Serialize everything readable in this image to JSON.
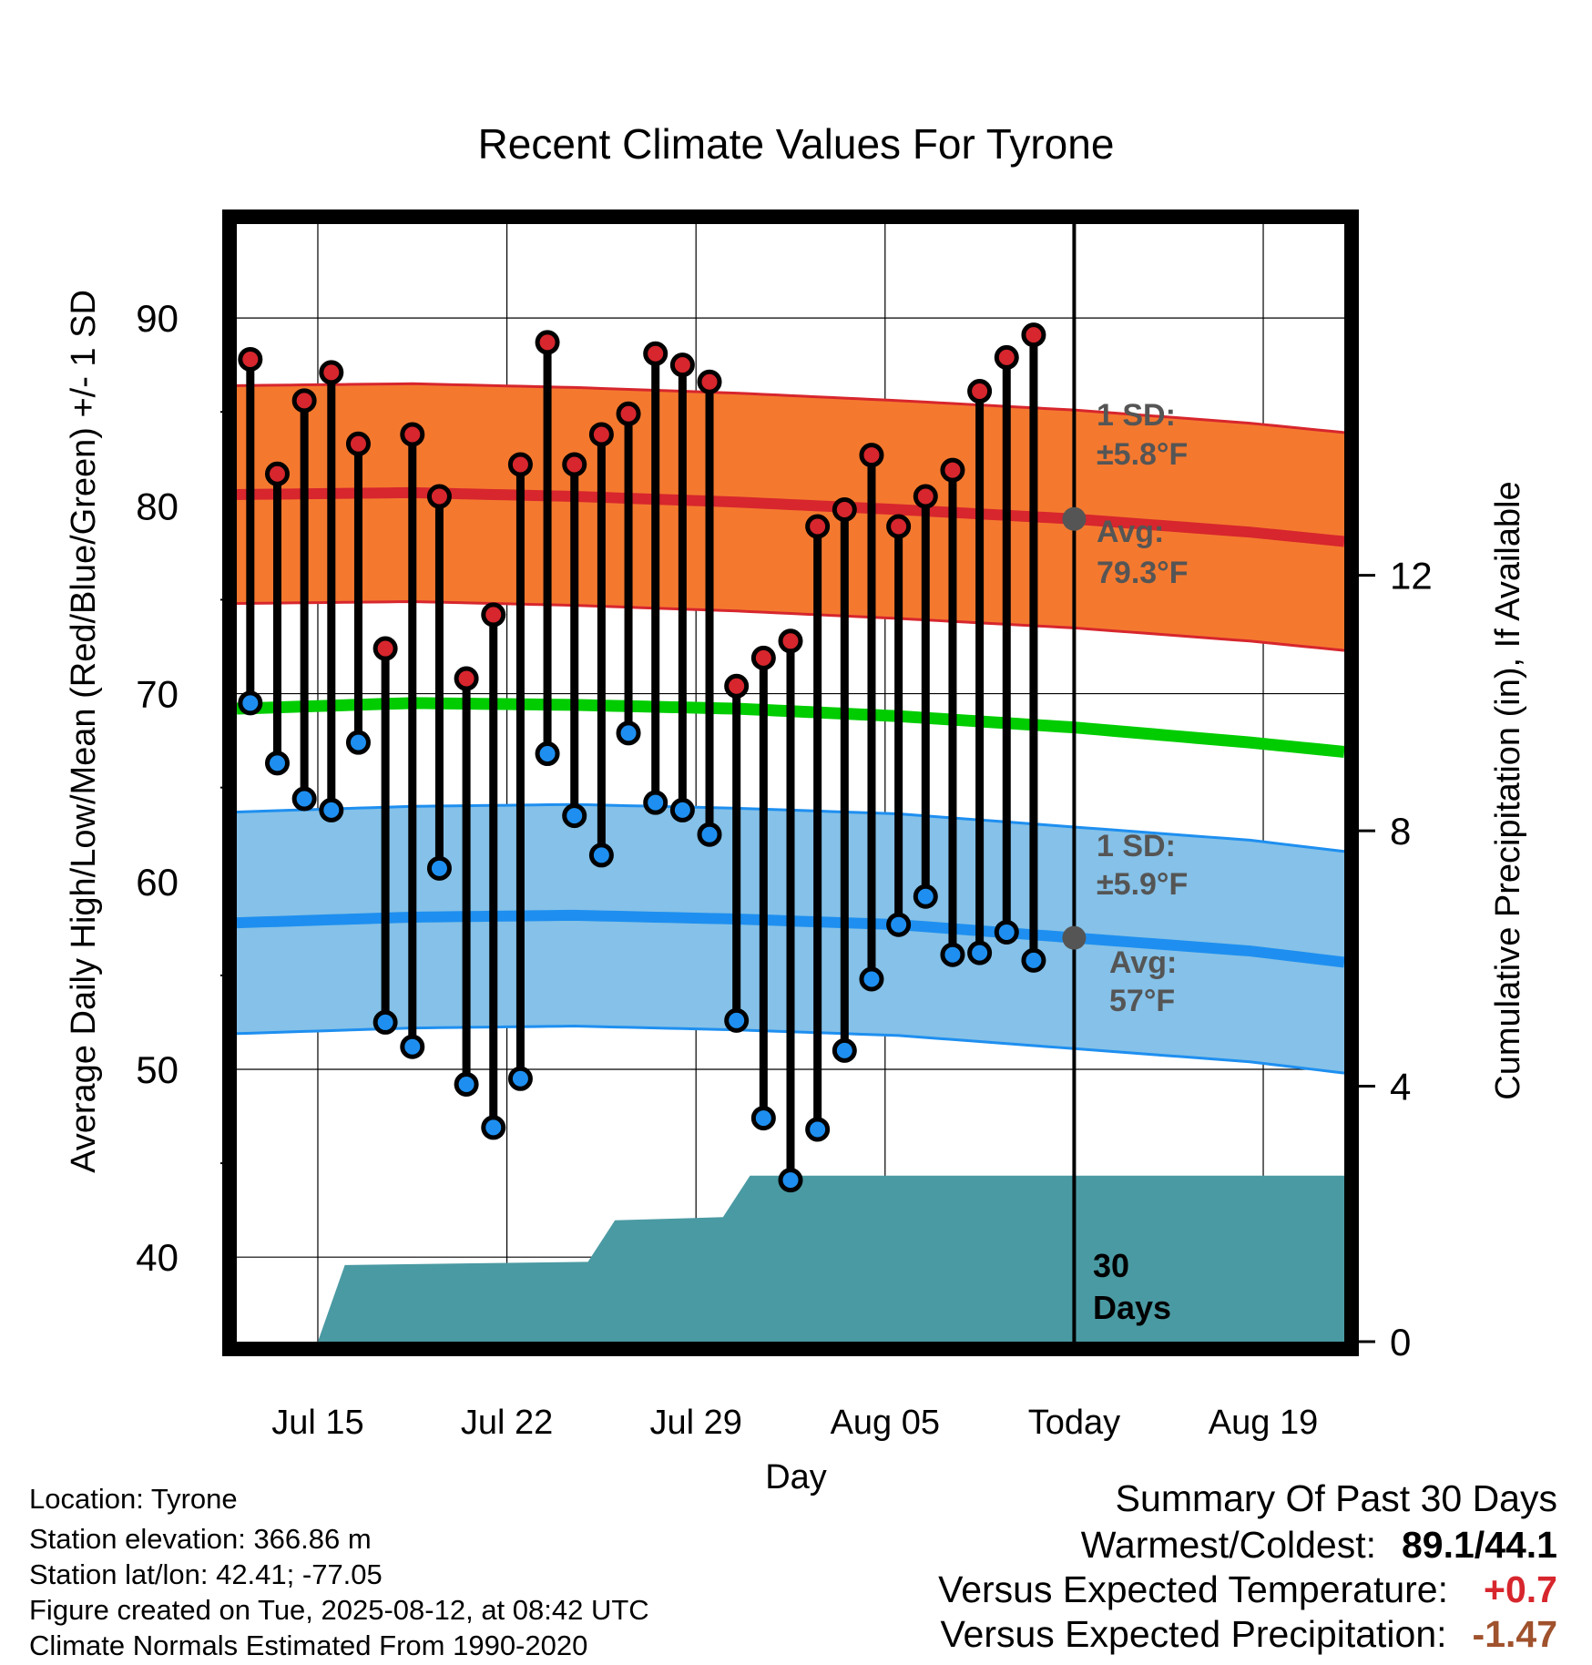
{
  "chart_data": {
    "type": "line",
    "title": "Recent Climate Values For Tyrone",
    "xlabel": "Day",
    "ylabel": "Average Daily High/Low/Mean (Red/Blue/Green) +/- 1 SD",
    "y2label": "Cumulative Precipitation (in), If Available",
    "ylim": [
      35.5,
      95
    ],
    "y2lim": [
      0,
      17.5
    ],
    "yticks": [
      "40",
      "50",
      "60",
      "70",
      "80",
      "90"
    ],
    "y2ticks": [
      "0",
      "4",
      "8",
      "12"
    ],
    "xticks": [
      "Jul 15",
      "Jul 22",
      "Jul 29",
      "Aug 05",
      "Today",
      "Aug 19"
    ],
    "xtick_days": [
      2.5,
      9.5,
      16.5,
      23.5,
      30.5,
      37.5
    ],
    "days": [
      "Jul 13",
      "Jul 14",
      "Jul 15",
      "Jul 16",
      "Jul 17",
      "Jul 18",
      "Jul 19",
      "Jul 20",
      "Jul 21",
      "Jul 22",
      "Jul 23",
      "Jul 24",
      "Jul 25",
      "Jul 26",
      "Jul 27",
      "Jul 28",
      "Jul 29",
      "Jul 30",
      "Jul 31",
      "Aug 01",
      "Aug 02",
      "Aug 03",
      "Aug 04",
      "Aug 05",
      "Aug 06",
      "Aug 07",
      "Aug 08",
      "Aug 09",
      "Aug 10",
      "Aug 11"
    ],
    "series": [
      {
        "name": "High",
        "color": "#d7262d",
        "values": [
          87.8,
          81.7,
          85.6,
          87.1,
          83.3,
          72.4,
          83.8,
          80.5,
          70.8,
          74.2,
          82.2,
          88.7,
          82.2,
          83.8,
          84.9,
          88.1,
          87.5,
          86.6,
          70.4,
          71.9,
          72.8,
          78.9,
          79.8,
          82.7,
          78.9,
          80.5,
          81.9,
          86.1,
          87.9,
          89.1
        ]
      },
      {
        "name": "Low",
        "color": "#1e8ff0",
        "values": [
          69.5,
          66.3,
          64.4,
          63.8,
          67.4,
          52.5,
          51.2,
          60.7,
          49.2,
          46.9,
          49.5,
          66.8,
          63.5,
          61.4,
          67.9,
          64.2,
          63.8,
          62.5,
          52.6,
          47.4,
          44.1,
          46.8,
          51.0,
          54.8,
          57.7,
          59.2,
          56.1,
          56.2,
          57.3,
          55.8
        ]
      }
    ],
    "normals": {
      "days": [
        -0.5,
        6,
        12,
        18,
        24,
        30.5,
        37,
        40.5
      ],
      "high_avg": [
        80.6,
        80.7,
        80.5,
        80.2,
        79.8,
        79.3,
        78.6,
        78.1
      ],
      "high_sd": 5.8,
      "mean_avg": [
        69.2,
        69.5,
        69.4,
        69.2,
        68.8,
        68.2,
        67.4,
        66.9
      ],
      "low_avg": [
        57.8,
        58.1,
        58.2,
        58.0,
        57.7,
        57.0,
        56.3,
        55.7
      ],
      "low_sd": 5.9
    },
    "precip": {
      "color": "#4a9aa3",
      "days": [
        2.5,
        3.5,
        12.5,
        13.5,
        17.5,
        18.5,
        40.5
      ],
      "values": [
        0,
        1.2,
        1.25,
        1.9,
        1.95,
        2.6,
        2.6
      ]
    },
    "annotations": {
      "high_sd_label": "1 SD:",
      "high_sd_value": "±5.8°F",
      "high_avg_label": "Avg:",
      "high_avg_value": "79.3°F",
      "low_sd_label": "1 SD:",
      "low_sd_value": "±5.9°F",
      "low_avg_label": "Avg:",
      "low_avg_value": "57°F",
      "period_line1": "30",
      "period_line2": "Days"
    },
    "grid": true,
    "colors": {
      "high_band": "#f4792f",
      "high_line": "#d7262d",
      "mean_line": "#00cc00",
      "low_band": "#85c1e8",
      "low_line": "#1e8ff0",
      "annotation": "#555555"
    }
  },
  "info": {
    "location": "Location: Tyrone",
    "elevation": "Station elevation: 366.86 m",
    "latlon": "Station lat/lon: 42.41; -77.05",
    "created": "Figure created on Tue, 2025-08-12, at 08:42 UTC",
    "normals": "Climate Normals Estimated From 1990-2020"
  },
  "summary": {
    "title": "Summary Of Past 30 Days",
    "warmest_label": "Warmest/Coldest:",
    "warmest_value": "89.1/44.1",
    "temp_label": "Versus Expected Temperature:",
    "temp_value": "+0.7",
    "temp_color": "#d7262d",
    "precip_label": "Versus Expected Precipitation:",
    "precip_value": "-1.47",
    "precip_color": "#a0522d"
  }
}
